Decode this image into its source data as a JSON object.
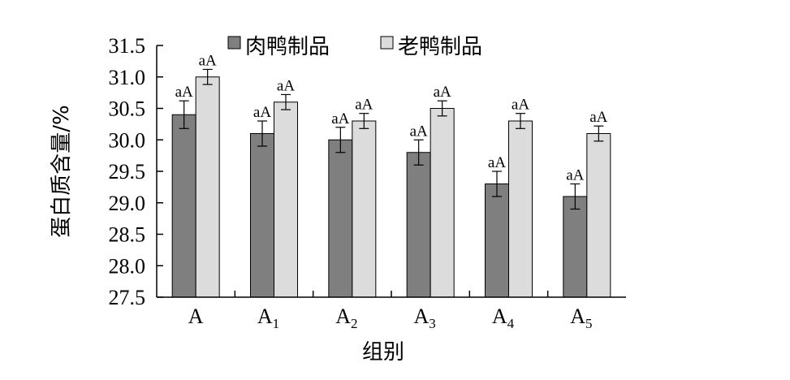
{
  "chart_data": {
    "type": "bar",
    "categories": [
      {
        "base": "A",
        "sub": ""
      },
      {
        "base": "A",
        "sub": "1"
      },
      {
        "base": "A",
        "sub": "2"
      },
      {
        "base": "A",
        "sub": "3"
      },
      {
        "base": "A",
        "sub": "4"
      },
      {
        "base": "A",
        "sub": "5"
      }
    ],
    "series": [
      {
        "name": "肉鸭制品",
        "color": "#7f7f7f",
        "values": [
          30.4,
          30.1,
          30.0,
          29.8,
          29.3,
          29.1
        ],
        "errors": [
          0.22,
          0.2,
          0.2,
          0.2,
          0.2,
          0.2
        ],
        "labels": [
          "aA",
          "aA",
          "aA",
          "aA",
          "aA",
          "aA"
        ]
      },
      {
        "name": "老鸭制品",
        "color": "#dcdcdc",
        "values": [
          31.0,
          30.6,
          30.3,
          30.5,
          30.3,
          30.1
        ],
        "errors": [
          0.12,
          0.12,
          0.12,
          0.12,
          0.12,
          0.12
        ],
        "labels": [
          "aA",
          "aA",
          "aA",
          "aA",
          "aA",
          "aA"
        ]
      }
    ],
    "xlabel": "组别",
    "ylabel": "蛋白质含量/%",
    "ylim": [
      27.5,
      31.5
    ],
    "yticks": [
      "27.5",
      "28.0",
      "28.5",
      "29.0",
      "29.5",
      "30.0",
      "30.5",
      "31.0",
      "31.5"
    ],
    "legend_position": "top-center",
    "grid": false
  }
}
